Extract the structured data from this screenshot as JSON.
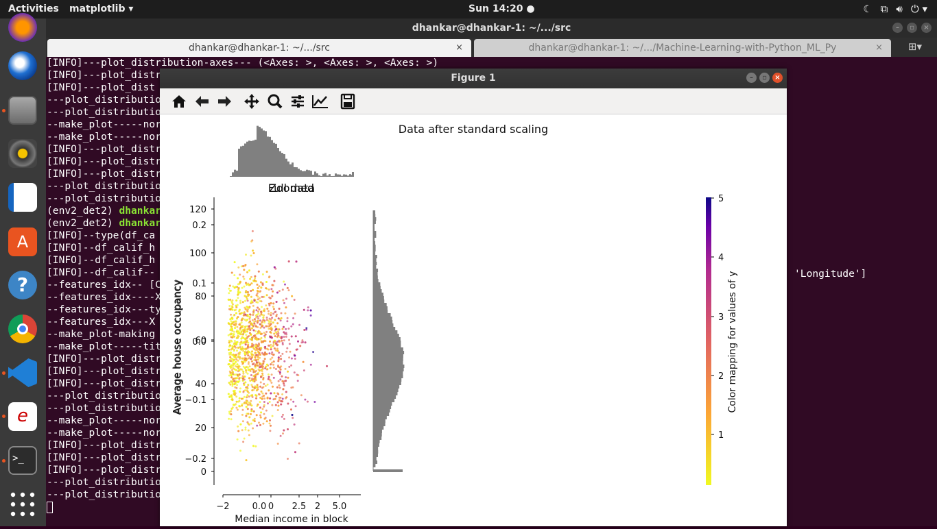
{
  "topbar": {
    "activities": "Activities",
    "app_menu": "matplotlib ▾",
    "clock": "Sun 14:20 ●"
  },
  "terminal": {
    "title": "dhankar@dhankar-1: ~/.../src",
    "tabs": [
      {
        "label": "dhankar@dhankar-1: ~/.../src",
        "close": "×"
      },
      {
        "label": "dhankar@dhankar-1: ~/.../Machine-Learning-with-Python_ML_Py",
        "close": "×"
      }
    ],
    "lines": [
      "[INFO]---plot_distribution-axes--- (<Axes: >, <Axes: >, <Axes: >)",
      "[INFO]---plot_distr",
      "[INFO]---plot_dist",
      "---plot_distributio",
      "---plot_distributio",
      "--make_plot-----nor",
      "--make_plot-----nor",
      "[INFO]---plot_distr",
      "[INFO]---plot_distr",
      "[INFO]---plot_distr",
      "---plot_distributio",
      "---plot_distributio",
      "(env2_det2) |dhankar",
      "(env2_det2) |dhankar",
      "[INFO]--type(df_ca",
      "[INFO]--df_calif_h",
      "[INFO]--df_calif_h",
      "[INFO]--df_calif--",
      "--features_idx-- [C",
      "--features_idx----X",
      "--features_idx---ty",
      "--features_idx---X",
      "--make_plot-making",
      "--make_plot-----tit",
      "[INFO]---plot_distr",
      "[INFO]---plot_distr",
      "[INFO]---plot_distr",
      "---plot_distributio",
      "---plot_distributio",
      "--make_plot-----nor",
      "--make_plot-----nor",
      "[INFO]---plot_distr",
      "[INFO]---plot_distr",
      "[INFO]---plot_distr",
      "---plot_distributio",
      "---plot_distributio"
    ],
    "right_text": "'Longitude']"
  },
  "figure": {
    "window_title": "Figure 1",
    "toolbar": [
      "home-icon",
      "back-icon",
      "forward-icon",
      "pan-icon",
      "zoom-icon",
      "configure-icon",
      "axes-edit-icon",
      "save-icon"
    ]
  },
  "chart_data": {
    "type": "scatter",
    "title": "Data after standard scaling",
    "overlapping_titles": [
      "Zoomed",
      "Full data"
    ],
    "xlabel": "Median income in block",
    "ylabel": "Average house occupancy",
    "x_ticks_a": [
      "−2",
      "0.0",
      "2.5",
      "5.0"
    ],
    "x_ticks_b": [
      "0",
      "2"
    ],
    "y_ticks_a": [
      "0",
      "20",
      "40",
      "60",
      "80",
      "100",
      "120"
    ],
    "y_ticks_b": [
      "−0.2",
      "−0.1",
      "0.0",
      "0.1",
      "0.2"
    ],
    "colorbar": {
      "label": "Color mapping for values of y",
      "ticks": [
        "1",
        "2",
        "3",
        "4",
        "5"
      ],
      "range": [
        0.15,
        5.0
      ],
      "colormap": "plasma_r"
    },
    "grid": false,
    "x_range": [
      -2,
      6
    ],
    "y_range": [
      -0.25,
      0.25
    ],
    "points": {
      "count": 1800,
      "x_center": -0.2,
      "y_center": 0.0
    }
  }
}
